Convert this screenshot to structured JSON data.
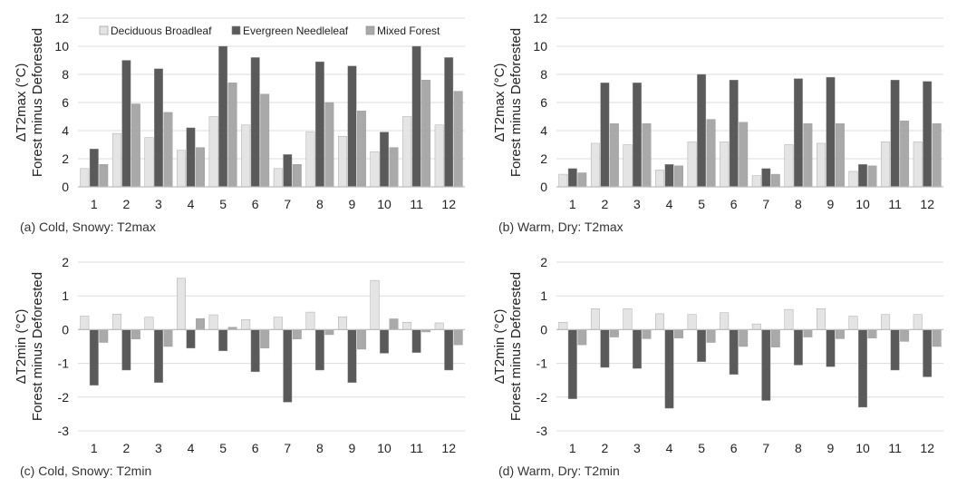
{
  "colors": {
    "deciduous": "#e4e4e4",
    "evergreen": "#5a5a5a",
    "mixed": "#a9a9a9",
    "axis": "#c8c8c8",
    "grid": "#dcdcdc"
  },
  "chart_data": [
    {
      "type": "bar",
      "caption": "(a) Cold, Snowy: T2max",
      "ylabel_line1": "ΔT2max (°C)",
      "ylabel_line2": "Forest minus Deforested",
      "ylim": [
        0,
        12
      ],
      "yticks": [
        0,
        2,
        4,
        6,
        8,
        10,
        12
      ],
      "categories": [
        "1",
        "2",
        "3",
        "4",
        "5",
        "6",
        "7",
        "8",
        "9",
        "10",
        "11",
        "12"
      ],
      "legend": "top",
      "series": [
        {
          "name": "Deciduous Broadleaf",
          "values": [
            1.3,
            3.8,
            3.5,
            2.6,
            5.0,
            4.4,
            1.3,
            3.9,
            3.6,
            2.5,
            5.0,
            4.4
          ]
        },
        {
          "name": "Evergreen Needleleaf",
          "values": [
            2.7,
            9.0,
            8.4,
            4.2,
            10.0,
            9.2,
            2.3,
            8.9,
            8.6,
            3.9,
            10.0,
            9.2
          ]
        },
        {
          "name": "Mixed Forest",
          "values": [
            1.6,
            5.9,
            5.3,
            2.8,
            7.4,
            6.6,
            1.6,
            6.0,
            5.4,
            2.8,
            7.6,
            6.8
          ]
        }
      ]
    },
    {
      "type": "bar",
      "caption": "(b) Warm, Dry: T2max",
      "ylabel_line1": "ΔT2max (°C)",
      "ylabel_line2": "Forest minus Deforested",
      "ylim": [
        0,
        12
      ],
      "yticks": [
        0,
        2,
        4,
        6,
        8,
        10,
        12
      ],
      "categories": [
        "1",
        "2",
        "3",
        "4",
        "5",
        "6",
        "7",
        "8",
        "9",
        "10",
        "11",
        "12"
      ],
      "series": [
        {
          "name": "Deciduous Broadleaf",
          "values": [
            0.9,
            3.1,
            3.0,
            1.2,
            3.2,
            3.2,
            0.8,
            3.0,
            3.1,
            1.1,
            3.2,
            3.2
          ]
        },
        {
          "name": "Evergreen Needleleaf",
          "values": [
            1.3,
            7.4,
            7.4,
            1.6,
            8.0,
            7.6,
            1.3,
            7.7,
            7.8,
            1.6,
            7.6,
            7.5
          ]
        },
        {
          "name": "Mixed Forest",
          "values": [
            1.0,
            4.5,
            4.5,
            1.5,
            4.8,
            4.6,
            0.9,
            4.5,
            4.5,
            1.5,
            4.7,
            4.5
          ]
        }
      ]
    },
    {
      "type": "bar",
      "caption": "(c) Cold, Snowy: T2min",
      "ylabel_line1": "ΔT2min (°C)",
      "ylabel_line2": "Forest minus Deforested",
      "ylim": [
        -3,
        2
      ],
      "yticks": [
        -3,
        -2,
        -1,
        0,
        1,
        2
      ],
      "categories": [
        "1",
        "2",
        "3",
        "4",
        "5",
        "6",
        "7",
        "8",
        "9",
        "10",
        "11",
        "12"
      ],
      "series": [
        {
          "name": "Deciduous Broadleaf",
          "values": [
            0.4,
            0.46,
            0.37,
            1.52,
            0.44,
            0.3,
            0.37,
            0.52,
            0.38,
            1.46,
            0.22,
            0.2
          ]
        },
        {
          "name": "Evergreen Needleleaf",
          "values": [
            -1.65,
            -1.2,
            -1.57,
            -0.55,
            -0.63,
            -1.25,
            -2.15,
            -1.2,
            -1.57,
            -0.7,
            -0.68,
            -1.2
          ]
        },
        {
          "name": "Mixed Forest",
          "values": [
            -0.38,
            -0.28,
            -0.5,
            0.33,
            0.07,
            -0.55,
            -0.28,
            -0.15,
            -0.58,
            0.32,
            -0.07,
            -0.45
          ]
        }
      ]
    },
    {
      "type": "bar",
      "caption": "(d) Warm, Dry: T2min",
      "ylabel_line1": "ΔT2min (°C)",
      "ylabel_line2": "Forest minus Deforested",
      "ylim": [
        -3,
        2
      ],
      "yticks": [
        -3,
        -2,
        -1,
        0,
        1,
        2
      ],
      "categories": [
        "1",
        "2",
        "3",
        "4",
        "5",
        "6",
        "7",
        "8",
        "9",
        "10",
        "11",
        "12"
      ],
      "series": [
        {
          "name": "Deciduous Broadleaf",
          "values": [
            0.22,
            0.62,
            0.62,
            0.47,
            0.45,
            0.5,
            0.17,
            0.6,
            0.62,
            0.4,
            0.45,
            0.45
          ]
        },
        {
          "name": "Evergreen Needleleaf",
          "values": [
            -2.05,
            -1.12,
            -1.15,
            -2.33,
            -0.95,
            -1.33,
            -2.1,
            -1.05,
            -1.1,
            -2.3,
            -1.2,
            -1.4
          ]
        },
        {
          "name": "Mixed Forest",
          "values": [
            -0.45,
            -0.22,
            -0.27,
            -0.25,
            -0.38,
            -0.5,
            -0.52,
            -0.22,
            -0.27,
            -0.25,
            -0.35,
            -0.5
          ]
        }
      ]
    }
  ]
}
